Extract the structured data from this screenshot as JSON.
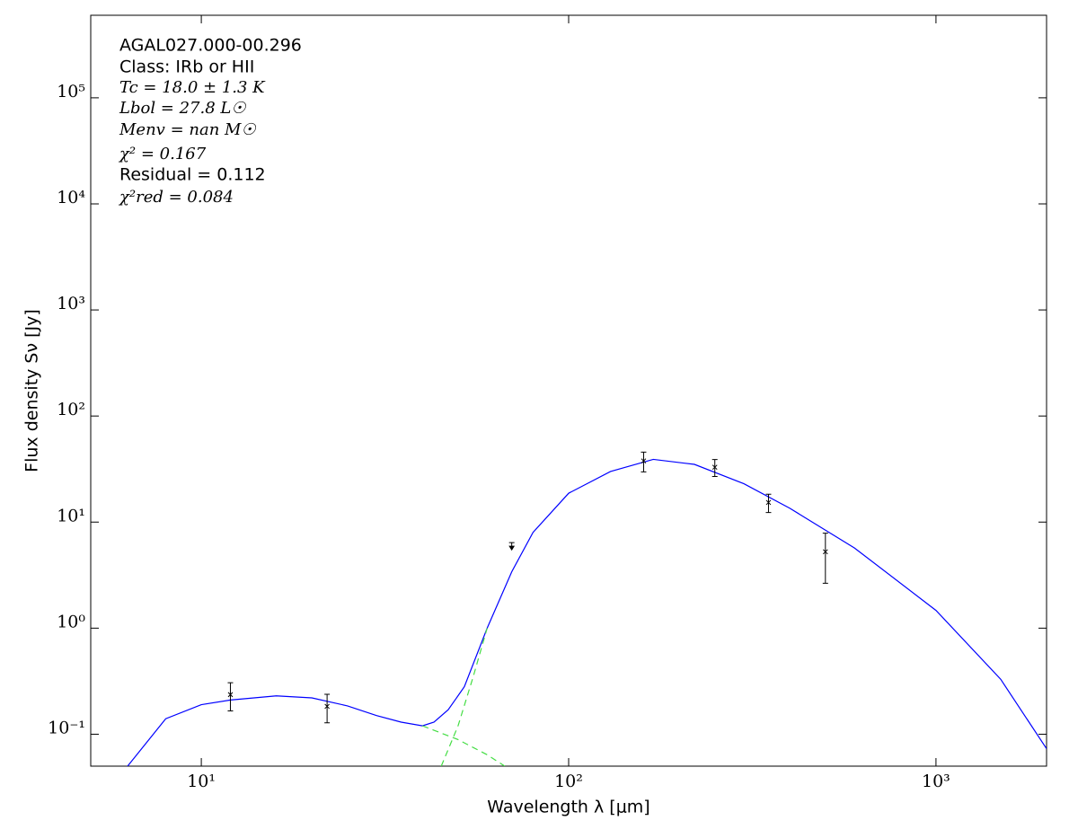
{
  "chart_data": {
    "type": "line",
    "xscale": "log",
    "yscale": "log",
    "xlabel": "Wavelength λ [μm]",
    "ylabel": "Flux density Sν [Jy]",
    "annotations": [
      "AGAL027.000-00.296",
      "Class: IRb or HII",
      "Tc = 18.0 ± 1.3 K",
      "Lbol = 27.8 L☉",
      "Menv = nan M☉",
      "χ² = 0.167",
      "Residual = 0.112",
      "χ²red = 0.084"
    ],
    "xlim": [
      5,
      2000
    ],
    "ylim": [
      0.05,
      600000
    ],
    "xticks": [
      {
        "value": 10,
        "label": "10¹"
      },
      {
        "value": 100,
        "label": "10²"
      },
      {
        "value": 1000,
        "label": "10³"
      }
    ],
    "yticks": [
      {
        "value": 0.1,
        "label": "10⁻¹"
      },
      {
        "value": 1,
        "label": "10⁰"
      },
      {
        "value": 10,
        "label": "10¹"
      },
      {
        "value": 100,
        "label": "10²"
      },
      {
        "value": 1000,
        "label": "10³"
      },
      {
        "value": 10000,
        "label": "10⁴"
      },
      {
        "value": 100000,
        "label": "10⁵"
      }
    ],
    "series": [
      {
        "color": "#0000ff",
        "dashed": false,
        "x": [
          6.3,
          8,
          10,
          12,
          16,
          20,
          25,
          30,
          35,
          40,
          43,
          47,
          52,
          60,
          70,
          80,
          100,
          130,
          170,
          220,
          300,
          400,
          600,
          1000,
          1500,
          2000
        ],
        "values": [
          0.05,
          0.14,
          0.19,
          0.21,
          0.23,
          0.22,
          0.185,
          0.15,
          0.13,
          0.12,
          0.13,
          0.17,
          0.28,
          1.0,
          3.4,
          8,
          18.7,
          30,
          39,
          35,
          23,
          13.5,
          5.7,
          1.47,
          0.33,
          0.073
        ]
      },
      {
        "color": "#44dd44",
        "dashed": true,
        "x": [
          40,
          50,
          60,
          67
        ],
        "values": [
          0.12,
          0.089,
          0.064,
          0.05
        ]
      },
      {
        "color": "#44dd44",
        "dashed": true,
        "x": [
          45,
          50,
          55,
          60
        ],
        "values": [
          0.05,
          0.12,
          0.35,
          1.0
        ]
      }
    ],
    "points": {
      "color": "#000000",
      "x": [
        12,
        22,
        160,
        250,
        350,
        500
      ],
      "values": [
        0.236,
        0.183,
        37.7,
        32.9,
        15.3,
        5.25
      ],
      "errors": [
        0.07,
        0.055,
        8,
        6,
        3,
        2.6
      ]
    },
    "upper_limits": {
      "color": "#000000",
      "x": [
        70
      ],
      "values": [
        6.4
      ]
    }
  }
}
